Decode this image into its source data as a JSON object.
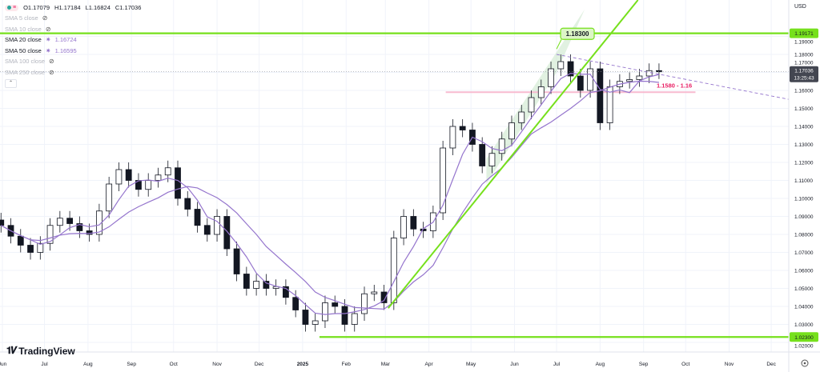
{
  "header": {
    "ohlc": {
      "open": "O1.17079",
      "high": "H1.17184",
      "low": "L1.16824",
      "close": "C1.17036"
    }
  },
  "indicators": [
    {
      "label": "SMA 5 close",
      "visible": false,
      "value": ""
    },
    {
      "label": "SMA 10 close",
      "visible": false,
      "value": ""
    },
    {
      "label": "SMA 20 close",
      "visible": true,
      "value": "1.16724"
    },
    {
      "label": "SMA 50 close",
      "visible": true,
      "value": "1.16595"
    },
    {
      "label": "SMA 100 close",
      "visible": false,
      "value": ""
    },
    {
      "label": "SMA 250 close",
      "visible": false,
      "value": ""
    }
  ],
  "price_axis": {
    "currency": "USD",
    "ticks": [
      "1.02000",
      "1.03000",
      "1.04000",
      "1.05000",
      "1.06000",
      "1.07000",
      "1.08000",
      "1.09000",
      "1.10000",
      "1.11000",
      "1.12000",
      "1.13000",
      "1.14000",
      "1.15000",
      "1.16000",
      "1.17000",
      "1.18000",
      "1.19000"
    ],
    "current_price": "1.17036",
    "countdown": "13:25:43",
    "line_labels": [
      "1.19171",
      "1.02300"
    ]
  },
  "time_axis": {
    "ticks": [
      {
        "label": "Jun",
        "date": "2024-06-01"
      },
      {
        "label": "Jul",
        "date": "2024-07-01"
      },
      {
        "label": "Aug",
        "date": "2024-08-01"
      },
      {
        "label": "Sep",
        "date": "2024-09-01"
      },
      {
        "label": "Oct",
        "date": "2024-10-01"
      },
      {
        "label": "Nov",
        "date": "2024-11-01"
      },
      {
        "label": "Dec",
        "date": "2024-12-01"
      },
      {
        "label": "2025",
        "date": "2025-01-01"
      },
      {
        "label": "Feb",
        "date": "2025-02-01"
      },
      {
        "label": "Mar",
        "date": "2025-03-01"
      },
      {
        "label": "Apr",
        "date": "2025-04-01"
      },
      {
        "label": "May",
        "date": "2025-05-01"
      },
      {
        "label": "Jun",
        "date": "2025-06-01"
      },
      {
        "label": "Jul",
        "date": "2025-07-01"
      },
      {
        "label": "Aug",
        "date": "2025-08-01"
      },
      {
        "label": "Sep",
        "date": "2025-09-01"
      },
      {
        "label": "Oct",
        "date": "2025-10-01"
      },
      {
        "label": "Nov",
        "date": "2025-11-01"
      },
      {
        "label": "Dec",
        "date": "2025-12-01"
      }
    ]
  },
  "branding": {
    "logo_text": "TradingView"
  },
  "colors": {
    "up": "#131722",
    "down": "#131722",
    "sma": "#9575cd",
    "green_line": "#76e01c",
    "zone": "#f8bbd0",
    "zone_text": "#e91e63",
    "dashed": "#9575cd",
    "channel": "#c8e6c9"
  },
  "chart_data": {
    "type": "candlestick",
    "symbol_currency": "USD",
    "ylim": [
      1.015,
      1.2102
    ],
    "grid": true,
    "dates": [
      "2024-05-31",
      "2024-06-07",
      "2024-06-14",
      "2024-06-21",
      "2024-06-28",
      "2024-07-05",
      "2024-07-12",
      "2024-07-19",
      "2024-07-26",
      "2024-08-02",
      "2024-08-09",
      "2024-08-16",
      "2024-08-23",
      "2024-08-30",
      "2024-09-06",
      "2024-09-13",
      "2024-09-20",
      "2024-09-27",
      "2024-10-04",
      "2024-10-11",
      "2024-10-18",
      "2024-10-25",
      "2024-11-01",
      "2024-11-08",
      "2024-11-15",
      "2024-11-22",
      "2024-11-29",
      "2024-12-06",
      "2024-12-13",
      "2024-12-20",
      "2024-12-27",
      "2025-01-03",
      "2025-01-10",
      "2025-01-17",
      "2025-01-24",
      "2025-01-31",
      "2025-02-07",
      "2025-02-14",
      "2025-02-21",
      "2025-02-28",
      "2025-03-07",
      "2025-03-14",
      "2025-03-21",
      "2025-03-28",
      "2025-04-04",
      "2025-04-11",
      "2025-04-18",
      "2025-04-25",
      "2025-05-02",
      "2025-05-09",
      "2025-05-16",
      "2025-05-23",
      "2025-05-30",
      "2025-06-06",
      "2025-06-13",
      "2025-06-20",
      "2025-06-27",
      "2025-07-04",
      "2025-07-11",
      "2025-07-18",
      "2025-07-25",
      "2025-08-01",
      "2025-08-08",
      "2025-08-15",
      "2025-08-22",
      "2025-08-29",
      "2025-09-05",
      "2025-09-12"
    ],
    "close": [
      1.085,
      1.079,
      1.074,
      1.07,
      1.075,
      1.085,
      1.089,
      1.086,
      1.082,
      1.08,
      1.093,
      1.108,
      1.116,
      1.11,
      1.105,
      1.11,
      1.113,
      1.117,
      1.1,
      1.094,
      1.085,
      1.08,
      1.09,
      1.072,
      1.058,
      1.05,
      1.054,
      1.05,
      1.051,
      1.045,
      1.038,
      1.03,
      1.032,
      1.042,
      1.04,
      1.03,
      1.036,
      1.047,
      1.048,
      1.042,
      1.078,
      1.09,
      1.083,
      1.082,
      1.092,
      1.128,
      1.14,
      1.138,
      1.13,
      1.118,
      1.125,
      1.133,
      1.142,
      1.148,
      1.156,
      1.162,
      1.172,
      1.176,
      1.168,
      1.16,
      1.172,
      1.142,
      1.162,
      1.165,
      1.166,
      1.168,
      1.171,
      1.17036
    ],
    "drawings": {
      "horizontal_lines": [
        {
          "price": 1.19171,
          "label": "1.19171"
        },
        {
          "price": 1.023,
          "label": "1.02300",
          "from": "2025-01-13"
        }
      ],
      "trendline": {
        "from": [
          "2025-03-03",
          1.039
        ],
        "to": [
          "2025-08-28",
          1.2102
        ]
      },
      "channel": {
        "lower": [
          [
            "2025-05-12",
            1.108
          ],
          [
            "2025-07-01",
            1.17
          ]
        ],
        "upper": [
          [
            "2025-05-12",
            1.122
          ],
          [
            "2025-07-21",
            1.205
          ]
        ]
      },
      "dashed_line": {
        "from": [
          "2025-07-01",
          1.18
        ],
        "to": [
          "2025-12-31",
          1.1524
        ]
      },
      "zone": {
        "price": 1.159,
        "from": "2025-04-13",
        "to": "2025-10-08",
        "label": "1.1580 - 1.16"
      },
      "callout": {
        "date": "2025-07-01",
        "price": 1.183,
        "label": "1.18300"
      }
    }
  }
}
